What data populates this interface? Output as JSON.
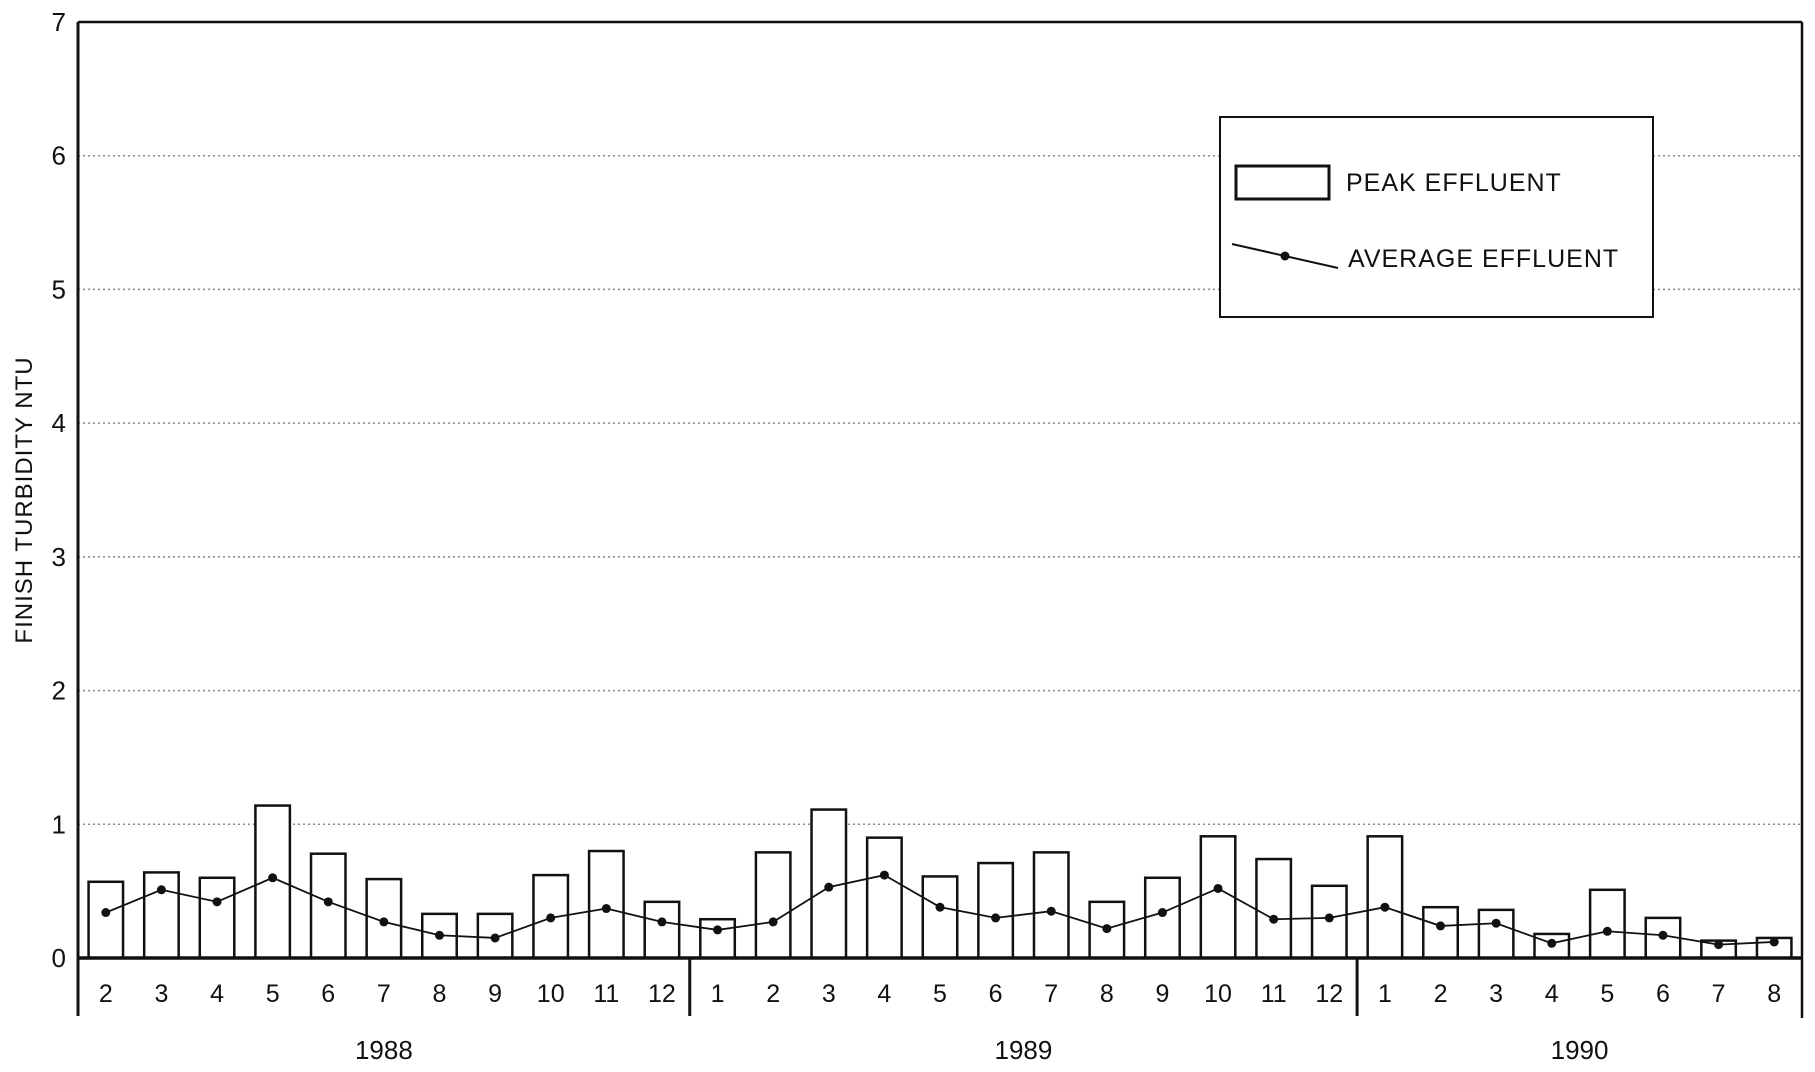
{
  "chart_data": {
    "type": "bar",
    "ylabel": "FINISH TURBIDITY NTU",
    "xlabel": "",
    "ylim": [
      0,
      7
    ],
    "yticks": [
      0,
      1,
      2,
      3,
      4,
      5,
      6,
      7
    ],
    "grid": "horizontal-dotted",
    "legend_position": "top-right",
    "categories": [
      "2",
      "3",
      "4",
      "5",
      "6",
      "7",
      "8",
      "9",
      "10",
      "11",
      "12",
      "1",
      "2",
      "3",
      "4",
      "5",
      "6",
      "7",
      "8",
      "9",
      "10",
      "11",
      "12",
      "1",
      "2",
      "3",
      "4",
      "5",
      "6",
      "7",
      "8"
    ],
    "year_groups": [
      {
        "label": "1988",
        "start": 0,
        "count": 11
      },
      {
        "label": "1989",
        "start": 11,
        "count": 12
      },
      {
        "label": "1990",
        "start": 23,
        "count": 8
      }
    ],
    "series": [
      {
        "name": "PEAK EFFLUENT",
        "style": "bar",
        "values": [
          0.57,
          0.64,
          0.6,
          1.14,
          0.78,
          0.59,
          0.33,
          0.33,
          0.62,
          0.8,
          0.42,
          0.29,
          0.79,
          1.11,
          0.9,
          0.61,
          0.71,
          0.79,
          0.42,
          0.6,
          0.91,
          0.74,
          0.54,
          0.91,
          0.38,
          0.36,
          0.18,
          0.51,
          0.3,
          0.13,
          0.15
        ]
      },
      {
        "name": "AVERAGE EFFLUENT",
        "style": "line-marker",
        "values": [
          0.34,
          0.51,
          0.42,
          0.6,
          0.42,
          0.27,
          0.17,
          0.15,
          0.3,
          0.37,
          0.27,
          0.21,
          0.27,
          0.53,
          0.62,
          0.38,
          0.3,
          0.35,
          0.22,
          0.34,
          0.52,
          0.29,
          0.3,
          0.38,
          0.24,
          0.26,
          0.11,
          0.2,
          0.17,
          0.1,
          0.12
        ]
      }
    ],
    "colors": {
      "bar_fill": "#ffffff",
      "stroke": "#111111",
      "grid": "#888888"
    }
  }
}
